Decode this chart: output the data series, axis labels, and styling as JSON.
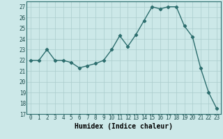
{
  "x": [
    0,
    1,
    2,
    3,
    4,
    5,
    6,
    7,
    8,
    9,
    10,
    11,
    12,
    13,
    14,
    15,
    16,
    17,
    18,
    19,
    20,
    21,
    22,
    23
  ],
  "y": [
    22,
    22,
    23,
    22,
    22,
    21.8,
    21.3,
    21.5,
    21.7,
    22,
    23,
    24.3,
    23.3,
    24.4,
    25.7,
    27,
    26.8,
    27,
    27,
    25.2,
    24.2,
    21.3,
    19,
    17.5
  ],
  "line_color": "#2d6e6e",
  "marker": "D",
  "marker_size": 2.2,
  "bg_color": "#cce8e8",
  "grid_color": "#aacccc",
  "xlabel": "Humidex (Indice chaleur)",
  "ylim": [
    17,
    27.5
  ],
  "yticks": [
    17,
    18,
    19,
    20,
    21,
    22,
    23,
    24,
    25,
    26,
    27
  ],
  "xticks": [
    0,
    1,
    2,
    3,
    4,
    5,
    6,
    7,
    8,
    9,
    10,
    11,
    12,
    13,
    14,
    15,
    16,
    17,
    18,
    19,
    20,
    21,
    22,
    23
  ],
  "xlabel_fontsize": 7,
  "tick_fontsize": 5.5,
  "line_width": 1.0
}
